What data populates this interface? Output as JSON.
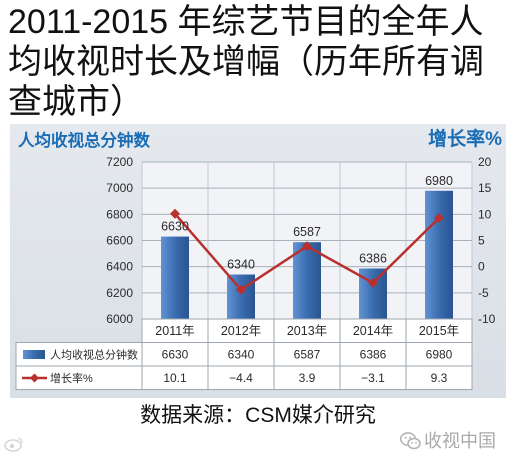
{
  "title": "2011-2015 年综艺节目的全年人均收视时长及增幅（历年所有调查城市）",
  "chart_data": {
    "type": "bar",
    "categories": [
      "2011年",
      "2012年",
      "2013年",
      "2014年",
      "2015年"
    ],
    "series": [
      {
        "name": "人均收视总分钟数",
        "type": "bar",
        "axis": "left",
        "values": [
          6630,
          6340,
          6587,
          6386,
          6980
        ],
        "color": "#3a6cb0"
      },
      {
        "name": "增长率%",
        "type": "line",
        "axis": "right",
        "values": [
          10.1,
          -4.4,
          3.9,
          -3.1,
          9.3
        ],
        "labels": [
          "10.1",
          "−4.4",
          "3.9",
          "−3.1",
          "9.3"
        ],
        "color": "#b8312f",
        "marker": "diamond"
      }
    ],
    "y_left": {
      "label": "人均收视总分钟数",
      "range": [
        6000,
        7200
      ],
      "ticks": [
        6000,
        6200,
        6400,
        6600,
        6800,
        7000,
        7200
      ]
    },
    "y_right": {
      "label": "增长率%",
      "range": [
        -10,
        20
      ],
      "ticks": [
        -10,
        -5,
        0,
        5,
        10,
        15,
        20
      ]
    },
    "grid": true,
    "legend": "bottom",
    "data_table": true
  },
  "source": "数据来源：CSM媒介研究",
  "watermark": {
    "weibo_icon": "weibo-icon",
    "wechat_icon": "wechat-icon",
    "wechat_text": "收视中国"
  },
  "colors": {
    "label_blue": "#1a6cb5"
  }
}
